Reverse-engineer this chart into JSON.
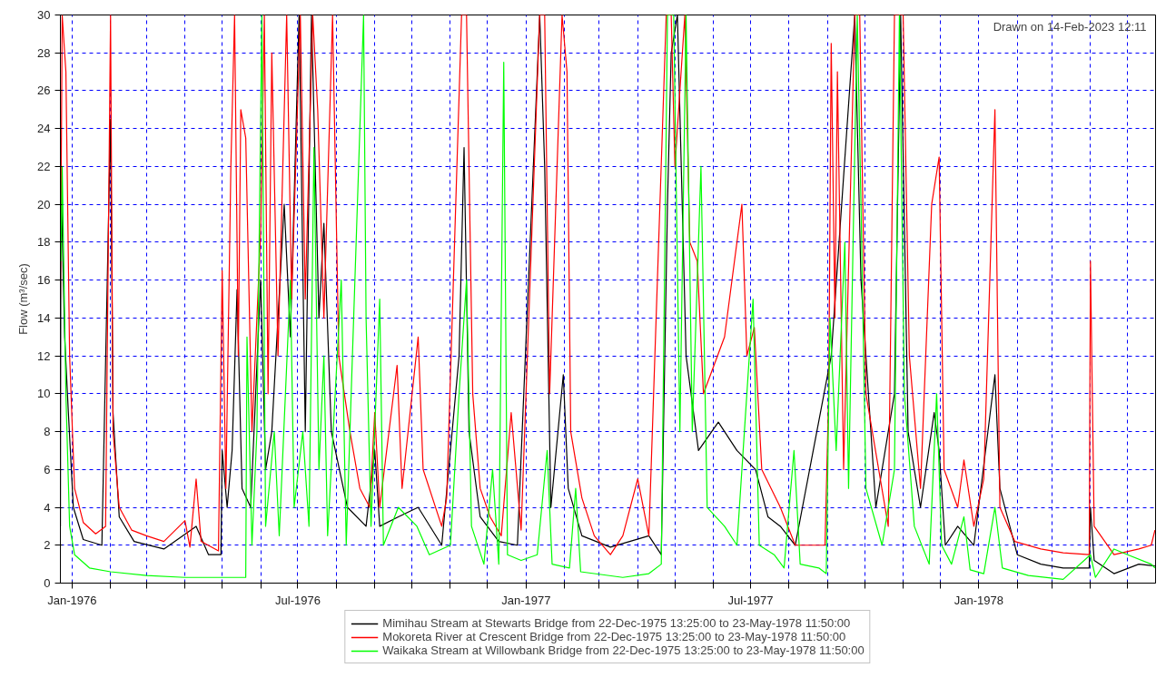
{
  "chart_data": {
    "type": "line",
    "ylabel": "Flow (m³/sec)",
    "annotations": [
      "Drawn on 14-Feb-2023 12:11"
    ],
    "xlim": [
      "1975-12-22T13:25",
      "1978-05-23T11:50"
    ],
    "ylim": [
      0,
      30
    ],
    "yticks": [
      0,
      2,
      4,
      6,
      8,
      10,
      12,
      14,
      16,
      18,
      20,
      22,
      24,
      26,
      28,
      30
    ],
    "xticks": [
      {
        "value": "1976-01",
        "label": "Jan-1976"
      },
      {
        "value": "1976-02",
        "label": null
      },
      {
        "value": "1976-03",
        "label": null
      },
      {
        "value": "1976-04",
        "label": null
      },
      {
        "value": "1976-05",
        "label": null
      },
      {
        "value": "1976-06",
        "label": null
      },
      {
        "value": "1976-07",
        "label": "Jul-1976"
      },
      {
        "value": "1976-08",
        "label": null
      },
      {
        "value": "1976-09",
        "label": null
      },
      {
        "value": "1976-10",
        "label": null
      },
      {
        "value": "1976-11",
        "label": null
      },
      {
        "value": "1976-12",
        "label": null
      },
      {
        "value": "1977-01",
        "label": "Jan-1977"
      },
      {
        "value": "1977-02",
        "label": null
      },
      {
        "value": "1977-03",
        "label": null
      },
      {
        "value": "1977-04",
        "label": null
      },
      {
        "value": "1977-05",
        "label": null
      },
      {
        "value": "1977-06",
        "label": null
      },
      {
        "value": "1977-07",
        "label": "Jul-1977"
      },
      {
        "value": "1977-08",
        "label": null
      },
      {
        "value": "1977-09",
        "label": null
      },
      {
        "value": "1977-10",
        "label": null
      },
      {
        "value": "1977-11",
        "label": null
      },
      {
        "value": "1977-12",
        "label": null
      },
      {
        "value": "1978-01",
        "label": "Jan-1978"
      },
      {
        "value": "1978-02",
        "label": null
      },
      {
        "value": "1978-03",
        "label": null
      },
      {
        "value": "1978-04",
        "label": null
      },
      {
        "value": "1978-05",
        "label": null
      }
    ],
    "grid": true,
    "legend": "bottom",
    "marker": "none",
    "line_style": "solid",
    "series": [
      {
        "name": "Mimihau Stream at Stewarts Bridge from 22-Dec-1975 13:25:00 to 23-May-1978 11:50:00",
        "color": "#000000",
        "x": [
          "1975-12-22T14:00",
          "1975-12-23",
          "1975-12-26",
          "1975-12-29",
          "1976-01-02",
          "1976-01-10",
          "1976-01-25",
          "1976-02-01",
          "1976-02-03",
          "1976-02-08",
          "1976-02-20",
          "1976-03-15",
          "1976-04-10",
          "1976-04-20",
          "1976-04-30",
          "1976-05-01",
          "1976-05-05",
          "1976-05-09",
          "1976-05-13",
          "1976-05-17",
          "1976-05-24",
          "1976-06-01",
          "1976-06-05",
          "1976-06-10",
          "1976-06-20",
          "1976-06-25",
          "1976-07-02",
          "1976-07-07",
          "1976-07-12",
          "1976-07-18",
          "1976-07-22",
          "1976-07-28",
          "1976-08-10",
          "1976-08-25",
          "1976-09-01",
          "1976-09-05",
          "1976-09-20",
          "1976-10-06",
          "1976-10-25",
          "1976-11-08",
          "1976-11-12",
          "1976-11-16",
          "1976-11-25",
          "1976-12-10",
          "1976-12-25",
          "1977-01-12",
          "1977-01-16",
          "1977-01-21",
          "1977-01-31",
          "1977-02-04",
          "1977-02-15",
          "1977-03-10",
          "1977-04-10",
          "1977-04-20",
          "1977-04-25",
          "1977-04-28",
          "1977-05-03",
          "1977-05-10",
          "1977-05-20",
          "1977-06-05",
          "1977-06-20",
          "1977-07-05",
          "1977-07-15",
          "1977-07-25",
          "1977-08-06",
          "1977-09-04",
          "1977-09-23",
          "1977-09-28",
          "1977-10-10",
          "1977-10-25",
          "1977-10-30",
          "1977-11-05",
          "1977-11-15",
          "1977-11-26",
          "1977-11-30",
          "1977-12-05",
          "1977-12-15",
          "1977-12-28",
          "1978-01-14",
          "1978-01-18",
          "1978-02-01",
          "1978-02-20",
          "1978-03-10",
          "1978-03-31",
          "1978-04-01",
          "1978-04-04",
          "1978-04-20",
          "1978-05-10",
          "1978-05-23"
        ],
        "values": [
          3,
          21.5,
          13,
          9,
          4,
          2.3,
          2,
          24.5,
          9,
          3.5,
          2.2,
          1.8,
          3,
          1.5,
          1.5,
          7,
          4,
          7,
          15.5,
          5,
          4,
          16,
          6,
          8,
          20,
          13,
          30,
          8,
          30,
          14,
          19,
          8,
          4,
          3,
          7,
          3,
          3.5,
          4,
          2,
          12,
          23,
          8,
          3.5,
          2.2,
          2,
          30,
          22,
          4,
          11,
          5,
          2.5,
          1.9,
          2.5,
          1.5,
          20,
          28,
          30,
          12,
          7,
          8.5,
          7,
          6,
          3.5,
          3,
          2,
          12,
          30,
          16,
          4,
          10,
          30,
          8,
          4,
          9,
          7,
          2,
          3,
          2,
          11,
          5,
          1.5,
          1,
          0.8,
          0.8,
          4,
          1.2,
          0.5,
          1,
          0.9
        ]
      },
      {
        "name": "Mokoreta River at Crescent Bridge from 22-Dec-1975 13:25:00 to 23-May-1978 11:50:00",
        "color": "#ff0000",
        "x": [
          "1975-12-22T14:00",
          "1975-12-24",
          "1975-12-27",
          "1975-12-30",
          "1976-01-03",
          "1976-01-10",
          "1976-01-20",
          "1976-01-28",
          "1976-02-01",
          "1976-02-03",
          "1976-02-08",
          "1976-02-18",
          "1976-03-01",
          "1976-03-15",
          "1976-04-01",
          "1976-04-05",
          "1976-04-10",
          "1976-04-14",
          "1976-04-28",
          "1976-05-01",
          "1976-05-04",
          "1976-05-08",
          "1976-05-11",
          "1976-05-14",
          "1976-05-16",
          "1976-05-20",
          "1976-05-25",
          "1976-06-01",
          "1976-06-04",
          "1976-06-07",
          "1976-06-10",
          "1976-06-15",
          "1976-06-22",
          "1976-06-26",
          "1976-07-03",
          "1976-07-07",
          "1976-07-13",
          "1976-07-17",
          "1976-07-22",
          "1976-07-29",
          "1976-08-03",
          "1976-08-12",
          "1976-08-20",
          "1976-08-28",
          "1976-09-01",
          "1976-09-05",
          "1976-09-19",
          "1976-09-23",
          "1976-10-06",
          "1976-10-10",
          "1976-10-25",
          "1976-10-29",
          "1976-11-10",
          "1976-11-14",
          "1976-11-19",
          "1976-11-25",
          "1976-12-03",
          "1976-12-12",
          "1976-12-20",
          "1976-12-28",
          "1977-01-12",
          "1977-01-16",
          "1977-01-20",
          "1977-01-30",
          "1977-02-03",
          "1977-02-06",
          "1977-02-15",
          "1977-02-25",
          "1977-03-10",
          "1977-03-20",
          "1977-04-01",
          "1977-04-10",
          "1977-04-24",
          "1977-04-28",
          "1977-05-01",
          "1977-05-09",
          "1977-05-13",
          "1977-05-19",
          "1977-05-24",
          "1977-06-10",
          "1977-06-24",
          "1977-06-28",
          "1977-07-04",
          "1977-07-10",
          "1977-07-25",
          "1977-08-06",
          "1977-08-30",
          "1977-09-02",
          "1977-09-04",
          "1977-09-07",
          "1977-09-09",
          "1977-09-14",
          "1977-09-23",
          "1977-09-27",
          "1977-10-02",
          "1977-10-20",
          "1977-10-25",
          "1977-11-01",
          "1977-11-06",
          "1977-11-15",
          "1977-11-24",
          "1977-11-30",
          "1977-12-04",
          "1977-12-15",
          "1977-12-20",
          "1977-12-28",
          "1978-01-05",
          "1978-01-14",
          "1978-01-18",
          "1978-01-30",
          "1978-02-20",
          "1978-03-10",
          "1978-03-31",
          "1978-04-01",
          "1978-04-04",
          "1978-04-20",
          "1978-05-10",
          "1978-05-20",
          "1978-05-23"
        ],
        "values": [
          15,
          30,
          27,
          12,
          5,
          3.2,
          2.6,
          3,
          30,
          8,
          4,
          2.8,
          2.5,
          2.2,
          3.3,
          1.9,
          5.5,
          2.2,
          1.7,
          16.5,
          5,
          22,
          30,
          12,
          25,
          23.5,
          8,
          18.5,
          30,
          10,
          28,
          12,
          30,
          15,
          30,
          15,
          30,
          25,
          14,
          30,
          12,
          8,
          5,
          4,
          9,
          4,
          11.5,
          5,
          13,
          6,
          3,
          4.5,
          30,
          30,
          10,
          5,
          3.5,
          2.5,
          9,
          2.8,
          30,
          30,
          10,
          30,
          27,
          8,
          4.5,
          2.5,
          1.5,
          2.5,
          5.5,
          2.5,
          30,
          30,
          22,
          30,
          18,
          17,
          10,
          13,
          20,
          12,
          13.5,
          6,
          4,
          2,
          2,
          10,
          28.5,
          14,
          27,
          6,
          30,
          30,
          10,
          3,
          30,
          30,
          12,
          5,
          20,
          22.5,
          6,
          4,
          6.5,
          3,
          5.5,
          25,
          4,
          2.2,
          1.8,
          1.6,
          1.5,
          17,
          3,
          1.5,
          1.8,
          2,
          2.8
        ]
      },
      {
        "name": "Waikaka Stream at Willowbank Bridge from 22-Dec-1975 13:25:00 to 23-May-1978 11:50:00",
        "color": "#00ff00",
        "x": [
          "1975-12-23",
          "1975-12-24",
          "1975-12-27",
          "1975-12-30",
          "1976-01-03",
          "1976-01-15",
          "1976-02-01",
          "1976-03-01",
          "1976-04-01",
          "1976-05-20",
          "1976-05-21",
          "1976-05-25",
          "1976-05-29",
          "1976-06-02",
          "1976-06-05",
          "1976-06-12",
          "1976-06-16",
          "1976-06-25",
          "1976-06-28",
          "1976-07-05",
          "1976-07-10",
          "1976-07-14",
          "1976-07-18",
          "1976-07-22",
          "1976-07-25",
          "1976-08-05",
          "1976-08-09",
          "1976-08-23",
          "1976-08-25",
          "1976-08-29",
          "1976-09-05",
          "1976-09-08",
          "1976-09-20",
          "1976-10-05",
          "1976-10-15",
          "1976-11-01",
          "1976-11-08",
          "1976-11-14",
          "1976-11-18",
          "1976-11-28",
          "1976-12-05",
          "1976-12-10",
          "1976-12-14",
          "1976-12-17",
          "1976-12-28",
          "1977-01-10",
          "1977-01-18",
          "1977-01-22",
          "1977-02-05",
          "1977-02-10",
          "1977-02-14",
          "1977-03-20",
          "1977-04-10",
          "1977-04-20",
          "1977-04-25",
          "1977-04-30",
          "1977-05-05",
          "1977-05-10",
          "1977-05-15",
          "1977-05-22",
          "1977-05-27",
          "1977-06-10",
          "1977-06-20",
          "1977-07-03",
          "1977-07-08",
          "1977-07-20",
          "1977-07-28",
          "1977-08-05",
          "1977-08-10",
          "1977-08-25",
          "1977-08-31",
          "1977-09-03",
          "1977-09-08",
          "1977-09-15",
          "1977-09-18",
          "1977-09-25",
          "1977-09-28",
          "1977-10-02",
          "1977-10-15",
          "1977-10-25",
          "1977-10-29",
          "1977-11-02",
          "1977-11-10",
          "1977-11-22",
          "1977-11-28",
          "1977-12-02",
          "1977-12-10",
          "1977-12-20",
          "1977-12-25",
          "1978-01-05",
          "1978-01-14",
          "1978-01-20",
          "1978-02-10",
          "1978-03-10",
          "1978-04-01",
          "1978-04-05",
          "1978-04-20",
          "1978-05-01",
          "1978-05-20",
          "1978-05-23"
        ],
        "values": [
          17,
          22,
          10,
          3,
          1.5,
          0.8,
          0.6,
          0.4,
          0.3,
          0.3,
          13,
          2,
          8,
          30,
          3,
          8,
          2.5,
          16,
          4,
          8,
          3,
          23,
          6,
          12,
          2.5,
          16,
          2,
          30,
          14,
          3,
          15,
          2,
          4,
          3,
          1.5,
          2,
          10,
          16,
          3,
          1,
          6,
          1,
          27.5,
          1.5,
          1.2,
          1.5,
          7,
          1,
          0.8,
          5,
          0.6,
          0.3,
          0.5,
          1,
          30,
          30,
          8,
          30,
          8,
          22,
          4,
          3,
          2,
          15,
          2,
          1.5,
          0.8,
          7,
          1,
          0.8,
          0.5,
          14,
          7,
          18,
          5,
          30,
          20,
          5,
          2,
          6,
          30,
          10,
          3,
          1,
          10,
          2,
          1,
          3.5,
          0.7,
          0.5,
          4,
          0.8,
          0.4,
          0.2,
          1.5,
          0.3,
          1.8,
          1.5,
          1,
          0.8
        ]
      }
    ]
  }
}
